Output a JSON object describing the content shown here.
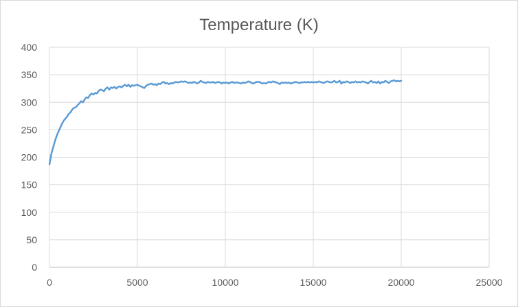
{
  "chart_data": {
    "type": "line",
    "title": "Temperature (K)",
    "xlabel": "",
    "ylabel": "",
    "xlim": [
      0,
      25000
    ],
    "ylim": [
      0,
      400
    ],
    "x_ticks": [
      0,
      5000,
      10000,
      15000,
      20000,
      25000
    ],
    "y_ticks": [
      0,
      50,
      100,
      150,
      200,
      250,
      300,
      350,
      400
    ],
    "grid": true,
    "legend": "none",
    "line_color": "#5b9bd5",
    "grid_color": "#d9d9d9",
    "series": [
      {
        "values": [
          [
            0,
            187
          ],
          [
            100,
            205
          ],
          [
            200,
            217
          ],
          [
            300,
            228
          ],
          [
            400,
            238
          ],
          [
            500,
            246
          ],
          [
            600,
            253
          ],
          [
            700,
            260
          ],
          [
            800,
            266
          ],
          [
            900,
            270
          ],
          [
            1000,
            274
          ],
          [
            1100,
            279
          ],
          [
            1200,
            282
          ],
          [
            1300,
            287
          ],
          [
            1400,
            290
          ],
          [
            1500,
            291
          ],
          [
            1600,
            295
          ],
          [
            1700,
            298
          ],
          [
            1800,
            302
          ],
          [
            1900,
            300
          ],
          [
            2000,
            305
          ],
          [
            2100,
            309
          ],
          [
            2200,
            308
          ],
          [
            2300,
            313
          ],
          [
            2400,
            316
          ],
          [
            2500,
            314
          ],
          [
            2600,
            317
          ],
          [
            2700,
            316
          ],
          [
            2800,
            321
          ],
          [
            2900,
            323
          ],
          [
            3000,
            322
          ],
          [
            3100,
            320
          ],
          [
            3200,
            325
          ],
          [
            3300,
            327
          ],
          [
            3400,
            323
          ],
          [
            3500,
            327
          ],
          [
            3600,
            326
          ],
          [
            3700,
            328
          ],
          [
            3800,
            325
          ],
          [
            3900,
            328
          ],
          [
            4000,
            329
          ],
          [
            4100,
            327
          ],
          [
            4200,
            330
          ],
          [
            4300,
            332
          ],
          [
            4400,
            329
          ],
          [
            4500,
            332
          ],
          [
            4600,
            328
          ],
          [
            4700,
            331
          ],
          [
            4800,
            330
          ],
          [
            4900,
            331
          ],
          [
            5000,
            332
          ],
          [
            5100,
            330
          ],
          [
            5200,
            329
          ],
          [
            5300,
            327
          ],
          [
            5400,
            326
          ],
          [
            5500,
            330
          ],
          [
            5600,
            332
          ],
          [
            5700,
            333
          ],
          [
            5800,
            334
          ],
          [
            5900,
            332
          ],
          [
            6000,
            333
          ],
          [
            6100,
            331
          ],
          [
            6200,
            334
          ],
          [
            6300,
            333
          ],
          [
            6400,
            336
          ],
          [
            6500,
            337
          ],
          [
            6600,
            334
          ],
          [
            6700,
            335
          ],
          [
            6800,
            333
          ],
          [
            6900,
            335
          ],
          [
            7000,
            334
          ],
          [
            7100,
            336
          ],
          [
            7200,
            337
          ],
          [
            7300,
            336
          ],
          [
            7400,
            337
          ],
          [
            7500,
            338
          ],
          [
            7600,
            337
          ],
          [
            7700,
            338
          ],
          [
            7800,
            337
          ],
          [
            7900,
            335
          ],
          [
            8000,
            336
          ],
          [
            8100,
            335
          ],
          [
            8200,
            337
          ],
          [
            8300,
            336
          ],
          [
            8400,
            334
          ],
          [
            8500,
            336
          ],
          [
            8600,
            339
          ],
          [
            8700,
            337
          ],
          [
            8800,
            336
          ],
          [
            8900,
            335
          ],
          [
            9000,
            337
          ],
          [
            9100,
            336
          ],
          [
            9200,
            336
          ],
          [
            9300,
            337
          ],
          [
            9400,
            335
          ],
          [
            9500,
            336
          ],
          [
            9600,
            337
          ],
          [
            9700,
            336
          ],
          [
            9800,
            334
          ],
          [
            9900,
            336
          ],
          [
            10000,
            335
          ],
          [
            10100,
            336
          ],
          [
            10200,
            334
          ],
          [
            10300,
            336
          ],
          [
            10400,
            337
          ],
          [
            10500,
            335
          ],
          [
            10600,
            336
          ],
          [
            10700,
            336
          ],
          [
            10800,
            335
          ],
          [
            10900,
            334
          ],
          [
            11000,
            336
          ],
          [
            11100,
            335
          ],
          [
            11200,
            336
          ],
          [
            11300,
            338
          ],
          [
            11400,
            337
          ],
          [
            11500,
            335
          ],
          [
            11600,
            334
          ],
          [
            11700,
            336
          ],
          [
            11800,
            337
          ],
          [
            11900,
            337
          ],
          [
            12000,
            336
          ],
          [
            12100,
            334
          ],
          [
            12200,
            335
          ],
          [
            12300,
            334
          ],
          [
            12400,
            336
          ],
          [
            12500,
            337
          ],
          [
            12600,
            336
          ],
          [
            12700,
            338
          ],
          [
            12800,
            337
          ],
          [
            12900,
            336
          ],
          [
            13000,
            335
          ],
          [
            13100,
            333
          ],
          [
            13200,
            336
          ],
          [
            13300,
            335
          ],
          [
            13400,
            336
          ],
          [
            13500,
            335
          ],
          [
            13600,
            336
          ],
          [
            13700,
            334
          ],
          [
            13800,
            335
          ],
          [
            13900,
            336
          ],
          [
            14000,
            337
          ],
          [
            14100,
            336
          ],
          [
            14200,
            335
          ],
          [
            14300,
            336
          ],
          [
            14400,
            336
          ],
          [
            14500,
            337
          ],
          [
            14600,
            336
          ],
          [
            14700,
            337
          ],
          [
            14800,
            336
          ],
          [
            14900,
            337
          ],
          [
            15000,
            336
          ],
          [
            15100,
            337
          ],
          [
            15200,
            336
          ],
          [
            15300,
            338
          ],
          [
            15400,
            337
          ],
          [
            15500,
            336
          ],
          [
            15600,
            335
          ],
          [
            15700,
            337
          ],
          [
            15800,
            338
          ],
          [
            15900,
            337
          ],
          [
            16000,
            336
          ],
          [
            16100,
            337
          ],
          [
            16200,
            339
          ],
          [
            16300,
            336
          ],
          [
            16400,
            337
          ],
          [
            16500,
            339
          ],
          [
            16600,
            334
          ],
          [
            16700,
            337
          ],
          [
            16800,
            336
          ],
          [
            16900,
            338
          ],
          [
            17000,
            337
          ],
          [
            17100,
            335
          ],
          [
            17200,
            337
          ],
          [
            17300,
            336
          ],
          [
            17400,
            338
          ],
          [
            17500,
            336
          ],
          [
            17600,
            337
          ],
          [
            17700,
            336
          ],
          [
            17800,
            338
          ],
          [
            17900,
            337
          ],
          [
            18000,
            336
          ],
          [
            18100,
            334
          ],
          [
            18200,
            337
          ],
          [
            18300,
            339
          ],
          [
            18400,
            336
          ],
          [
            18500,
            337
          ],
          [
            18600,
            335
          ],
          [
            18700,
            338
          ],
          [
            18800,
            334
          ],
          [
            18900,
            337
          ],
          [
            19000,
            336
          ],
          [
            19100,
            339
          ],
          [
            19200,
            337
          ],
          [
            19300,
            335
          ],
          [
            19400,
            338
          ],
          [
            19500,
            339
          ],
          [
            19600,
            340
          ],
          [
            19700,
            338
          ],
          [
            19800,
            339
          ],
          [
            19900,
            338
          ],
          [
            20000,
            339
          ]
        ]
      }
    ]
  }
}
